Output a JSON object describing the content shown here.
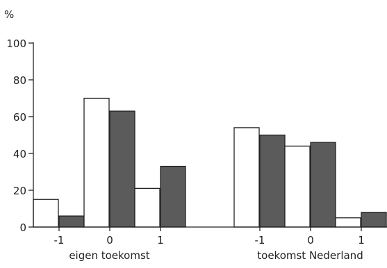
{
  "chart_data": {
    "type": "bar",
    "unit_label": "%",
    "ylim": [
      0,
      100
    ],
    "yticks": [
      0,
      20,
      40,
      60,
      80,
      100
    ],
    "grid": false,
    "groups": [
      {
        "label": "eigen toekomst",
        "categories": [
          "-1",
          "0",
          "1"
        ],
        "series": [
          {
            "fill": "#ffffff",
            "values": [
              15,
              70,
              21
            ]
          },
          {
            "fill": "#5b5b5b",
            "values": [
              6,
              63,
              33
            ]
          }
        ]
      },
      {
        "label": "toekomst Nederland",
        "categories": [
          "-1",
          "0",
          "1"
        ],
        "series": [
          {
            "fill": "#ffffff",
            "values": [
              54,
              44,
              5
            ]
          },
          {
            "fill": "#5b5b5b",
            "values": [
              50,
              46,
              8
            ]
          }
        ]
      }
    ]
  }
}
